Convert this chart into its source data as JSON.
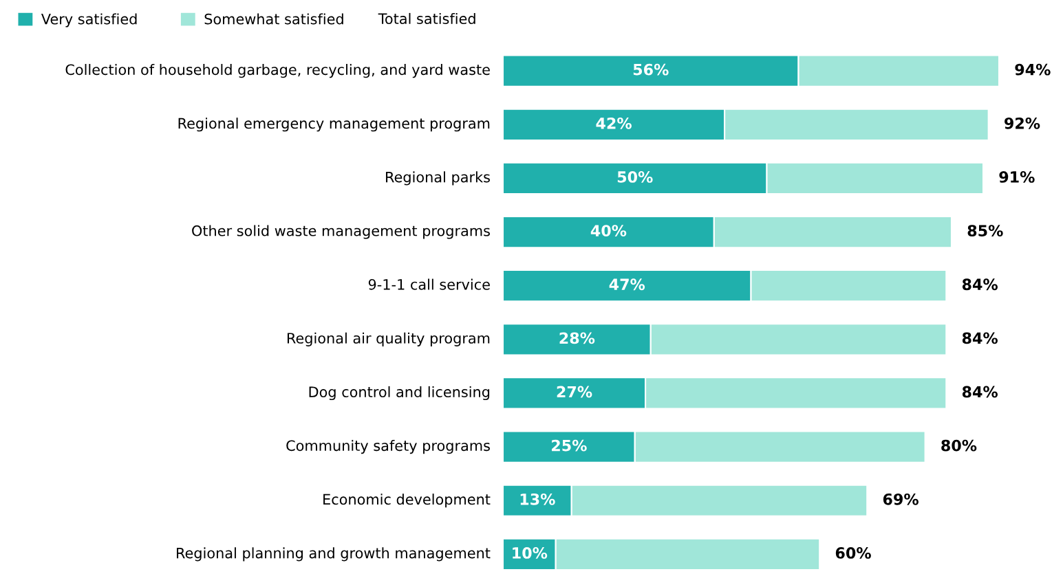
{
  "chart_data": {
    "type": "bar",
    "orientation": "horizontal",
    "stacked": true,
    "categories": [
      "Collection of household garbage, recycling, and yard waste",
      "Regional emergency management program",
      "Regional parks",
      "Other solid waste management programs",
      "9-1-1 call service",
      "Regional air quality program",
      "Dog control and licensing",
      "Community safety programs",
      "Economic development",
      "Regional planning and growth management"
    ],
    "series": [
      {
        "name": "Very satisfied",
        "color": "#20b0ac",
        "values": [
          56,
          42,
          50,
          40,
          47,
          28,
          27,
          25,
          13,
          10
        ],
        "value_labels": [
          "56%",
          "42%",
          "50%",
          "40%",
          "47%",
          "28%",
          "27%",
          "25%",
          "13%",
          "10%"
        ]
      },
      {
        "name": "Somewhat satisfied",
        "color": "#a0e6d9",
        "values": [
          38,
          50,
          41,
          45,
          37,
          56,
          57,
          55,
          56,
          50
        ]
      }
    ],
    "totals": [
      "94%",
      "92%",
      "91%",
      "85%",
      "84%",
      "84%",
      "84%",
      "80%",
      "69%",
      "60%"
    ],
    "annotations": [
      "Total satisfied"
    ],
    "legend": "top left"
  }
}
